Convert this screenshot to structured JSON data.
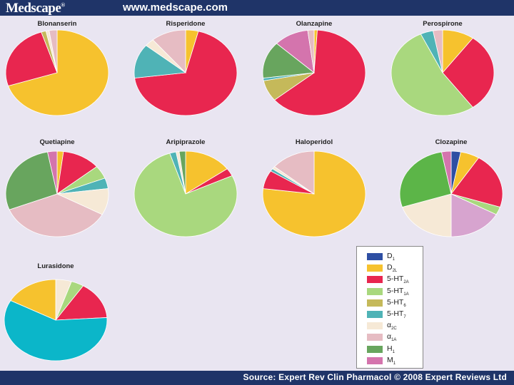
{
  "header": {
    "logo": "Medscape",
    "logo_mark": "®",
    "url": "www.medscape.com"
  },
  "footer": {
    "source": "Source: Expert Rev Clin Pharmacol © 2008 Expert Reviews Ltd"
  },
  "colors": {
    "D1": "#2e4fa3",
    "D2": "#f6c22e",
    "5-HT2A": "#e8264f",
    "5-HT1A": "#a9d87e",
    "5-HT6": "#c5b95a",
    "5-HT7": "#4fb3b6",
    "a2C": "#f6e9d6",
    "a1A": "#e6bcc3",
    "H1": "#68a55e",
    "M1": "#d474ad",
    "H1b": "#5cb548",
    "M1b": "#d7a4cf",
    "cyan": "#0bb6c9"
  },
  "legend": [
    {
      "key": "D1",
      "base": "D",
      "sub": "1"
    },
    {
      "key": "D2",
      "base": "D",
      "sub": "2L"
    },
    {
      "key": "5-HT2A",
      "base": "5-HT",
      "sub": "2A"
    },
    {
      "key": "5-HT1A",
      "base": "5-HT",
      "sub": "1A"
    },
    {
      "key": "5-HT6",
      "base": "5-HT",
      "sub": "6"
    },
    {
      "key": "5-HT7",
      "base": "5-HT",
      "sub": "7"
    },
    {
      "key": "a2C",
      "base": "α",
      "sub": "2C"
    },
    {
      "key": "a1A",
      "base": "α",
      "sub": "1A"
    },
    {
      "key": "H1",
      "base": "H",
      "sub": "1"
    },
    {
      "key": "M1",
      "base": "M",
      "sub": "1"
    }
  ],
  "chart_data": [
    {
      "type": "pie",
      "title": "Blonanserin",
      "slices": [
        {
          "key": "D2",
          "value": 70
        },
        {
          "key": "5-HT2A",
          "value": 25
        },
        {
          "key": "5-HT6",
          "value": 1.5
        },
        {
          "key": "a2C",
          "value": 1
        },
        {
          "key": "a1A",
          "value": 2.5
        }
      ]
    },
    {
      "type": "pie",
      "title": "Risperidone",
      "slices": [
        {
          "key": "D2",
          "value": 4
        },
        {
          "key": "5-HT2A",
          "value": 69
        },
        {
          "key": "5-HT7",
          "value": 13
        },
        {
          "key": "a2C",
          "value": 3
        },
        {
          "key": "a1A",
          "value": 11
        }
      ]
    },
    {
      "type": "pie",
      "title": "Olanzapine",
      "slices": [
        {
          "key": "D2",
          "value": 1
        },
        {
          "key": "5-HT2A",
          "value": 63
        },
        {
          "key": "5-HT6",
          "value": 8
        },
        {
          "key": "5-HT7",
          "value": 1
        },
        {
          "key": "H1",
          "value": 14
        },
        {
          "key": "M1",
          "value": 11
        },
        {
          "key": "a1A",
          "value": 2
        }
      ]
    },
    {
      "type": "pie",
      "title": "Perospirone",
      "slices": [
        {
          "key": "D2",
          "value": 10
        },
        {
          "key": "5-HT2A",
          "value": 30
        },
        {
          "key": "5-HT1A",
          "value": 53
        },
        {
          "key": "5-HT7",
          "value": 4
        },
        {
          "key": "a1A",
          "value": 3
        }
      ]
    },
    {
      "type": "pie",
      "title": "Quetiapine",
      "slices": [
        {
          "key": "D2",
          "value": 2
        },
        {
          "key": "5-HT2A",
          "value": 12
        },
        {
          "key": "5-HT1A",
          "value": 5
        },
        {
          "key": "5-HT7",
          "value": 4
        },
        {
          "key": "a2C",
          "value": 10
        },
        {
          "key": "a1A",
          "value": 36
        },
        {
          "key": "H1",
          "value": 28
        },
        {
          "key": "M1",
          "value": 3
        }
      ]
    },
    {
      "type": "pie",
      "title": "Aripiprazole",
      "slices": [
        {
          "key": "D2",
          "value": 15
        },
        {
          "key": "5-HT2A",
          "value": 3
        },
        {
          "key": "5-HT1A",
          "value": 77
        },
        {
          "key": "5-HT7",
          "value": 2
        },
        {
          "key": "a2C",
          "value": 1
        },
        {
          "key": "H1",
          "value": 2
        }
      ]
    },
    {
      "type": "pie",
      "title": "Haloperidol",
      "slices": [
        {
          "key": "D2",
          "value": 77
        },
        {
          "key": "5-HT2A",
          "value": 7
        },
        {
          "key": "5-HT7",
          "value": 1
        },
        {
          "key": "a2C",
          "value": 1
        },
        {
          "key": "a1A",
          "value": 14
        }
      ]
    },
    {
      "type": "pie",
      "title": "Clozapine",
      "slices": [
        {
          "key": "D1",
          "value": 3
        },
        {
          "key": "D2",
          "value": 6
        },
        {
          "key": "5-HT2A",
          "value": 21
        },
        {
          "key": "5-HT1A",
          "value": 3
        },
        {
          "key": "M1b",
          "value": 17
        },
        {
          "key": "a2C",
          "value": 20
        },
        {
          "key": "H1b",
          "value": 27
        },
        {
          "key": "M1",
          "value": 3
        }
      ]
    },
    {
      "type": "pie",
      "title": "Lurasidone",
      "slices": [
        {
          "key": "a2C",
          "value": 5
        },
        {
          "key": "5-HT1A",
          "value": 4
        },
        {
          "key": "5-HT2A",
          "value": 15
        },
        {
          "key": "cyan",
          "value": 59
        },
        {
          "key": "D2",
          "value": 17
        }
      ]
    }
  ]
}
